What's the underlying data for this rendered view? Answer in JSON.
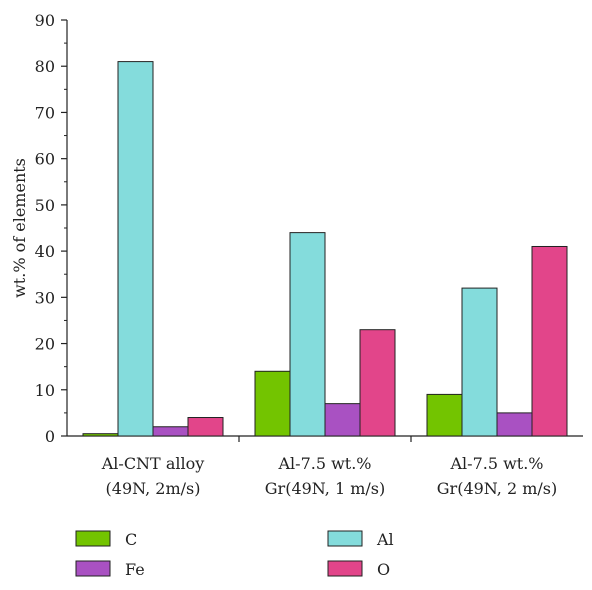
{
  "chart_data": {
    "type": "bar",
    "ylabel": "wt.% of elements",
    "xlabel": "",
    "ylim": [
      0,
      90
    ],
    "yticks": [
      0,
      10,
      20,
      30,
      40,
      50,
      60,
      70,
      80,
      90
    ],
    "categories": [
      [
        "Al-CNT alloy",
        "(49N, 2m/s)"
      ],
      [
        "Al-7.5 wt.%",
        "Gr(49N, 1 m/s)"
      ],
      [
        "Al-7.5 wt.%",
        "Gr(49N, 2 m/s)"
      ]
    ],
    "series": [
      {
        "name": "C",
        "color": "#73c400",
        "values": [
          0.5,
          14,
          9
        ]
      },
      {
        "name": "Al",
        "color": "#84dcdc",
        "values": [
          81,
          44,
          32
        ]
      },
      {
        "name": "Fe",
        "color": "#a951c2",
        "values": [
          2,
          7,
          5
        ]
      },
      {
        "name": "O",
        "color": "#e2458a",
        "values": [
          4,
          23,
          41
        ]
      }
    ],
    "legend_position": "bottom",
    "grid": false
  }
}
